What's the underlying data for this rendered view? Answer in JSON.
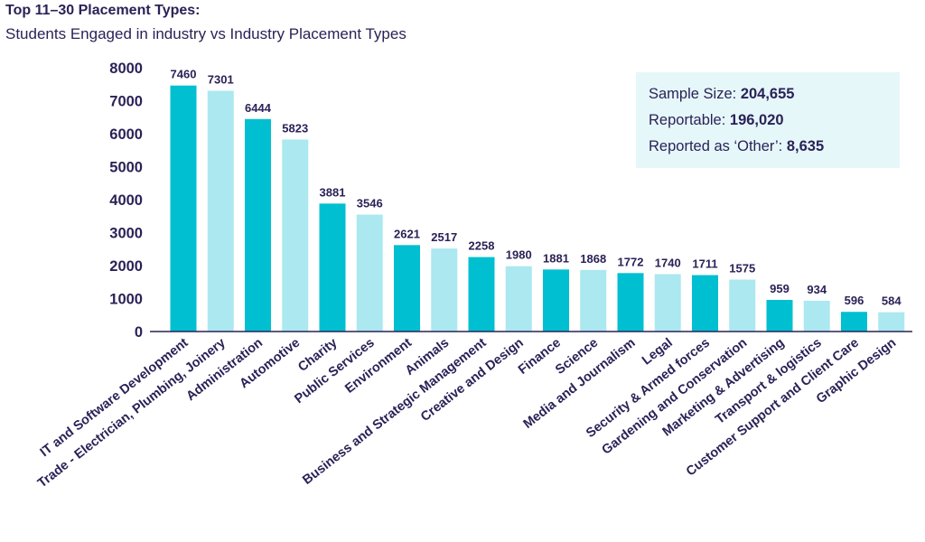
{
  "title": "Top 11–30 Placement Types:",
  "subtitle": "Students Engaged in industry vs Industry Placement Types",
  "stats": [
    {
      "label": "Sample Size:",
      "value": "204,655"
    },
    {
      "label": "Reportable:",
      "value": "196,020"
    },
    {
      "label": "Reported as ‘Other’:",
      "value": "8,635"
    }
  ],
  "colors": {
    "dark": "#00bfd0",
    "light": "#abe8f0",
    "text": "#2a2257",
    "axis": "#2a2257",
    "stats_bg": "#e6f7fa"
  },
  "chart_data": {
    "type": "bar",
    "title": "Top 11–30 Placement Types:",
    "subtitle": "Students Engaged in industry vs Industry Placement Types",
    "xlabel": "",
    "ylabel": "",
    "ylim": [
      0,
      8000
    ],
    "yticks": [
      "0",
      "1000",
      "2000",
      "3000",
      "4000",
      "5000",
      "6000",
      "7000",
      "8000"
    ],
    "grid": false,
    "categories": [
      "IT and Software Development",
      "Trade - Electrician, Plumbing, Joinery",
      "Administration",
      "Automotive",
      "Charity",
      "Public Services",
      "Environment",
      "Animals",
      "Business and Strategic Management",
      "Creative and Design",
      "Finance",
      "Science",
      "Media and Journalism",
      "Legal",
      "Security & Armed forces",
      "Gardening and Conservation",
      "Marketing & Advertising",
      "Transport & logistics",
      "Customer Support and Client Care",
      "Graphic Design"
    ],
    "values": [
      7460,
      7301,
      6444,
      5823,
      3881,
      3546,
      2621,
      2517,
      2258,
      1980,
      1881,
      1868,
      1772,
      1740,
      1711,
      1575,
      959,
      934,
      596,
      584
    ],
    "data_labels": [
      "7460",
      "7301",
      "6444",
      "5823",
      "3881",
      "3546",
      "2621",
      "2517",
      "2258",
      "1980",
      "1881",
      "1868",
      "1772",
      "1740",
      "1711",
      "1575",
      "959",
      "934",
      "596",
      "584"
    ]
  }
}
